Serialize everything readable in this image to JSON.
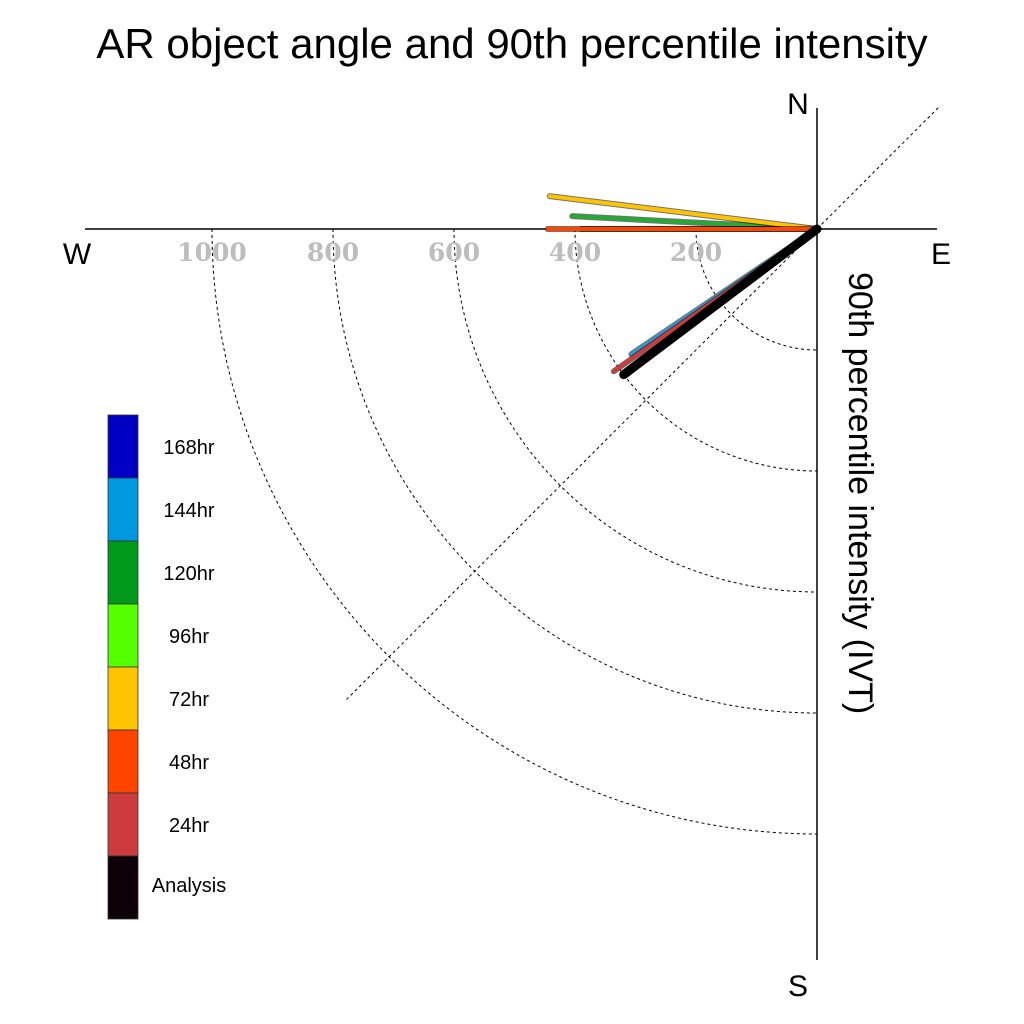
{
  "chart_data": {
    "type": "polar-vector",
    "title": "AR object angle and 90th percentile intensity",
    "ylabel": "90th percentile intensity (IVT)",
    "compass": {
      "north": "N",
      "south": "S",
      "east": "E",
      "west": "W"
    },
    "radial_ticks": [
      "200",
      "400",
      "600",
      "800",
      "1000"
    ],
    "radial_tick_values": [
      200,
      400,
      600,
      800,
      1000
    ],
    "rmax": 1100,
    "legend_position": "left",
    "legend": [
      {
        "label": "168hr",
        "color": "#0000c4"
      },
      {
        "label": "144hr",
        "color": "#0099e0"
      },
      {
        "label": "120hr",
        "color": "#00991a"
      },
      {
        "label": "96hr",
        "color": "#55ff00"
      },
      {
        "label": "72hr",
        "color": "#ffc400"
      },
      {
        "label": "48hr",
        "color": "#ff4400"
      },
      {
        "label": "24hr",
        "color": "#cc3c3c"
      },
      {
        "label": "Analysis",
        "color": "#0d0008"
      }
    ],
    "series": [
      {
        "name": "168hr",
        "bearing_deg": 233,
        "intensity": 320,
        "color": "#3c3cc8"
      },
      {
        "name": "144hr",
        "bearing_deg": 236,
        "intensity": 370,
        "color": "#3399cc"
      },
      {
        "name": "120hr",
        "bearing_deg": 273,
        "intensity": 405,
        "color": "#22aa33"
      },
      {
        "name": "96hr",
        "bearing_deg": 270,
        "intensity": 390,
        "color": "#55ff00"
      },
      {
        "name": "72hr",
        "bearing_deg": 277,
        "intensity": 445,
        "color": "#ffc400"
      },
      {
        "name": "48hr",
        "bearing_deg": 270,
        "intensity": 445,
        "color": "#ff4400"
      },
      {
        "name": "24hr",
        "bearing_deg": 235,
        "intensity": 410,
        "color": "#cc3c3c"
      },
      {
        "name": "Analysis",
        "bearing_deg": 233,
        "intensity": 400,
        "color": "#000000"
      }
    ]
  }
}
